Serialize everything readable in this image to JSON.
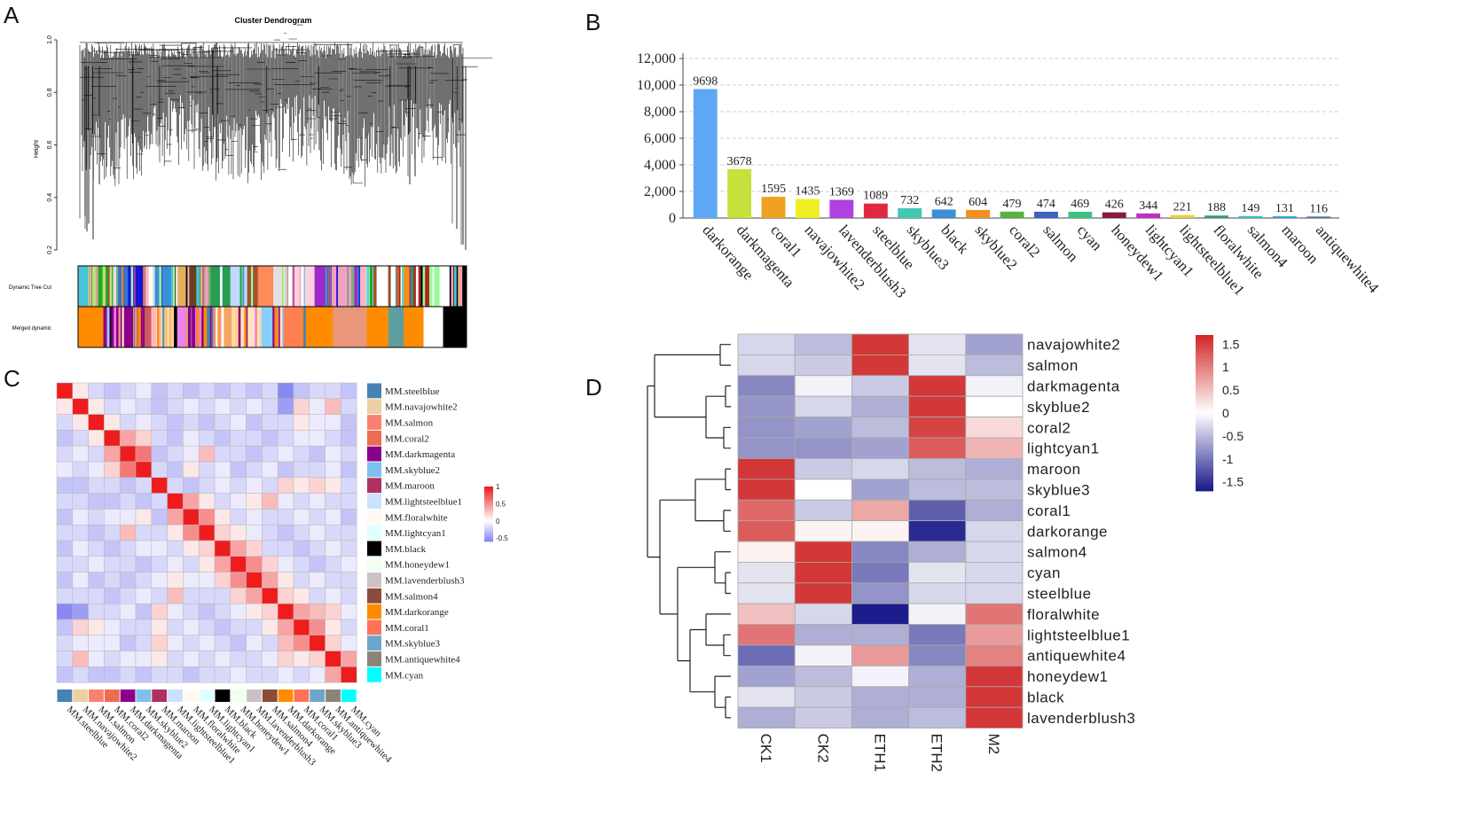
{
  "panels": {
    "a": {
      "letter": "A",
      "title": "Cluster Dendrogram",
      "ylabel": "Height",
      "yticks": [
        "0.2",
        "0.4",
        "0.6",
        "0.8",
        "1.0"
      ],
      "row_labels": [
        "Dynamic Tree Cut",
        "Merged dynamic"
      ]
    },
    "b": {
      "letter": "B"
    },
    "c": {
      "letter": "C"
    },
    "d": {
      "letter": "D"
    }
  },
  "chart_data": [
    {
      "id": "dendrogram",
      "type": "dendrogram",
      "title": "Cluster Dendrogram",
      "ylabel": "Height",
      "ylim": [
        0.2,
        1.0
      ],
      "dynamic_tree_cut_colors": [
        "#49c3d8",
        "#b6e37a",
        "#22aa22",
        "#3b6fd1",
        "#1515d6",
        "#ffffff",
        "#3a8fd8",
        "#e0b060",
        "#6b3f1f",
        "#d09a6b",
        "#2a9d50",
        "#c0d8ff",
        "#a0522d",
        "#ff8a5c",
        "#e0e0e0",
        "#c94fa0",
        "#ffd0e0",
        "#9e2ac9",
        "#f2a0c0",
        "#7fb07f",
        "#ffb6c1",
        "#40e0d0",
        "#ffffff",
        "#ff8c00",
        "#b22222",
        "#98fb98",
        "#ffffff",
        "#000000"
      ],
      "merged_dynamic_colors": [
        "#ff8c00",
        "#8b008b",
        "#cd5c5c",
        "#ffb6c1",
        "#fdd8a0",
        "#ee82ee",
        "#4682b4",
        "#f4a460",
        "#ffe4c4",
        "#87cefa",
        "#ff7f50",
        "#ff8c00",
        "#e9967a",
        "#ff8c00",
        "#5f9ea0",
        "#ff8c00",
        "#ffffff",
        "#000000"
      ]
    },
    {
      "id": "module-sizes",
      "type": "bar",
      "categories": [
        "darkorange",
        "darkmagenta",
        "coral1",
        "navajowhite2",
        "lavenderblush3",
        "steelblue",
        "skyblue3",
        "black",
        "skyblue2",
        "coral2",
        "salmon",
        "cyan",
        "honeydew1",
        "lightcyan1",
        "lightsteelblue1",
        "floralwhite",
        "salmon4",
        "maroon",
        "antiquewhite4"
      ],
      "values": [
        9698,
        3678,
        1595,
        1435,
        1369,
        1089,
        732,
        642,
        604,
        479,
        474,
        469,
        426,
        344,
        221,
        188,
        149,
        131,
        116
      ],
      "value_labels": [
        "9698",
        "3678",
        "1595",
        "1435",
        "1369",
        "1089",
        "732",
        "642",
        "604",
        "479",
        "474",
        "469",
        "426",
        "344",
        "221",
        "188",
        "149",
        "131",
        "116"
      ],
      "colors": [
        "#5ca8f4",
        "#c6e03c",
        "#f0a020",
        "#eeee22",
        "#b040e0",
        "#e02840",
        "#40c8b0",
        "#3d8ed8",
        "#f09020",
        "#58b040",
        "#4060c0",
        "#40c080",
        "#8a1a3a",
        "#c030c0",
        "#e8d040",
        "#30a070",
        "#40c0c0",
        "#30a8d0",
        "#4878b0"
      ],
      "yticks": [
        "0",
        "2,000",
        "4,000",
        "6,000",
        "8,000",
        "10,000",
        "12,000"
      ],
      "ylim": [
        0,
        12000
      ],
      "grid": true
    },
    {
      "id": "mm-correlation",
      "type": "heatmap",
      "rows": [
        "MM.steelblue",
        "MM.navajowhite2",
        "MM.salmon",
        "MM.coral2",
        "MM.darkmagenta",
        "MM.skyblue2",
        "MM.maroon",
        "MM.lightsteelblue1",
        "MM.floralwhite",
        "MM.lightcyan1",
        "MM.black",
        "MM.honeydew1",
        "MM.lavenderblush3",
        "MM.salmon4",
        "MM.darkorange",
        "MM.coral1",
        "MM.skyblue3",
        "MM.antiquewhite4",
        "MM.cyan"
      ],
      "module_colors": [
        "#4682b4",
        "#eecfa1",
        "#fa8072",
        "#ee6a50",
        "#8b008b",
        "#7ec0ee",
        "#b03060",
        "#cae1ff",
        "#fffaf0",
        "#e0ffff",
        "#000000",
        "#f0fff0",
        "#cdc1c5",
        "#8b4c39",
        "#ff8c00",
        "#ff7256",
        "#6ca6cd",
        "#8b8378",
        "#00ffff"
      ],
      "legend_ticks": [
        "1",
        "0.5",
        "0",
        "-0.5"
      ],
      "values": [
        [
          1.0,
          0.1,
          -0.2,
          -0.3,
          -0.2,
          -0.1,
          -0.3,
          -0.2,
          -0.3,
          -0.2,
          -0.3,
          -0.2,
          -0.3,
          -0.2,
          -0.6,
          -0.3,
          -0.2,
          -0.2,
          -0.3
        ],
        [
          0.1,
          1.0,
          0.1,
          -0.2,
          -0.1,
          -0.2,
          -0.3,
          -0.2,
          -0.1,
          -0.2,
          -0.1,
          -0.2,
          -0.1,
          -0.2,
          -0.5,
          0.2,
          -0.1,
          0.3,
          -0.2
        ],
        [
          -0.2,
          0.1,
          1.0,
          0.1,
          -0.2,
          -0.1,
          -0.2,
          -0.3,
          -0.2,
          -0.3,
          -0.2,
          -0.1,
          -0.3,
          -0.2,
          -0.2,
          0.1,
          -0.1,
          -0.1,
          -0.3
        ],
        [
          -0.3,
          -0.2,
          0.1,
          1.0,
          0.4,
          0.2,
          -0.2,
          -0.3,
          -0.1,
          -0.2,
          -0.3,
          -0.2,
          -0.2,
          -0.3,
          -0.2,
          -0.1,
          -0.1,
          -0.2,
          -0.3
        ],
        [
          -0.2,
          -0.1,
          -0.2,
          0.4,
          1.0,
          0.6,
          -0.3,
          -0.2,
          -0.1,
          0.3,
          -0.2,
          -0.2,
          -0.3,
          -0.2,
          -0.1,
          -0.2,
          -0.3,
          -0.1,
          -0.2
        ],
        [
          -0.1,
          -0.2,
          -0.1,
          0.2,
          0.6,
          1.0,
          -0.2,
          -0.3,
          0.1,
          -0.2,
          -0.1,
          -0.3,
          -0.2,
          -0.1,
          -0.3,
          -0.2,
          -0.2,
          -0.1,
          -0.3
        ],
        [
          -0.3,
          -0.3,
          -0.2,
          -0.2,
          -0.3,
          -0.2,
          1.0,
          -0.2,
          -0.3,
          -0.2,
          -0.1,
          -0.2,
          -0.1,
          -0.2,
          0.2,
          0.1,
          0.2,
          0.1,
          -0.2
        ],
        [
          -0.2,
          -0.2,
          -0.3,
          -0.3,
          -0.2,
          -0.3,
          -0.2,
          1.0,
          0.4,
          0.1,
          -0.2,
          -0.1,
          0.1,
          0.3,
          -0.1,
          -0.2,
          -0.1,
          -0.2,
          -0.2
        ],
        [
          -0.3,
          -0.1,
          -0.2,
          -0.1,
          -0.1,
          0.1,
          -0.3,
          0.4,
          1.0,
          0.5,
          0.1,
          -0.2,
          -0.1,
          -0.2,
          -0.2,
          -0.1,
          -0.2,
          -0.1,
          -0.3
        ],
        [
          -0.2,
          -0.2,
          -0.3,
          -0.2,
          0.3,
          -0.2,
          -0.2,
          0.1,
          0.5,
          1.0,
          0.2,
          0.1,
          -0.1,
          -0.2,
          -0.3,
          -0.2,
          -0.1,
          -0.2,
          -0.2
        ],
        [
          -0.3,
          -0.1,
          -0.2,
          -0.3,
          -0.2,
          -0.1,
          -0.1,
          -0.2,
          0.1,
          0.2,
          1.0,
          0.4,
          0.2,
          -0.2,
          -0.2,
          -0.3,
          -0.2,
          -0.1,
          -0.2
        ],
        [
          -0.2,
          -0.2,
          -0.1,
          -0.2,
          -0.2,
          -0.3,
          -0.2,
          -0.1,
          -0.2,
          0.1,
          0.4,
          1.0,
          0.5,
          0.2,
          -0.1,
          -0.2,
          -0.3,
          -0.2,
          -0.1
        ],
        [
          -0.3,
          -0.1,
          -0.3,
          -0.2,
          -0.3,
          -0.2,
          -0.1,
          0.1,
          -0.1,
          -0.1,
          0.2,
          0.5,
          1.0,
          0.4,
          0.1,
          -0.2,
          -0.1,
          -0.2,
          -0.2
        ],
        [
          -0.2,
          -0.2,
          -0.2,
          -0.3,
          -0.2,
          -0.1,
          -0.2,
          0.3,
          -0.2,
          -0.2,
          -0.2,
          0.2,
          0.4,
          1.0,
          0.2,
          0.1,
          -0.2,
          -0.1,
          -0.2
        ],
        [
          -0.6,
          -0.5,
          -0.2,
          -0.2,
          -0.1,
          -0.3,
          0.2,
          -0.1,
          -0.2,
          -0.3,
          -0.2,
          -0.1,
          0.1,
          0.2,
          1.0,
          0.4,
          0.3,
          0.2,
          -0.1
        ],
        [
          -0.3,
          0.2,
          0.1,
          -0.1,
          -0.2,
          -0.2,
          0.1,
          -0.2,
          -0.1,
          -0.2,
          -0.3,
          -0.2,
          -0.2,
          0.1,
          0.4,
          1.0,
          0.5,
          0.1,
          -0.2
        ],
        [
          -0.2,
          -0.1,
          -0.1,
          -0.1,
          -0.3,
          -0.2,
          0.2,
          -0.1,
          -0.2,
          -0.1,
          -0.2,
          -0.3,
          -0.1,
          -0.2,
          0.3,
          0.5,
          1.0,
          0.2,
          -0.1
        ],
        [
          -0.2,
          0.3,
          -0.1,
          -0.2,
          -0.1,
          -0.1,
          0.1,
          -0.2,
          -0.1,
          -0.2,
          -0.1,
          -0.2,
          -0.2,
          -0.1,
          0.2,
          0.1,
          0.2,
          1.0,
          0.4
        ],
        [
          -0.3,
          -0.2,
          -0.3,
          -0.3,
          -0.2,
          -0.3,
          -0.2,
          -0.2,
          -0.3,
          -0.2,
          -0.2,
          -0.1,
          -0.2,
          -0.2,
          -0.1,
          -0.2,
          -0.1,
          0.4,
          1.0
        ]
      ]
    },
    {
      "id": "module-trait-heatmap",
      "type": "heatmap",
      "rows": [
        "navajowhite2",
        "salmon",
        "darkmagenta",
        "skyblue2",
        "coral2",
        "lightcyan1",
        "maroon",
        "skyblue3",
        "coral1",
        "darkorange",
        "salmon4",
        "cyan",
        "steelblue",
        "floralwhite",
        "lightsteelblue1",
        "antiquewhite4",
        "honeydew1",
        "black",
        "lavenderblush3"
      ],
      "columns": [
        "CK1",
        "CK2",
        "ETH1",
        "ETH2",
        "M2"
      ],
      "legend_ticks": [
        "1.5",
        "1",
        "0.5",
        "0",
        "-0.5",
        "-1",
        "-1.5"
      ],
      "values": [
        [
          -0.3,
          -0.5,
          1.6,
          -0.2,
          -0.7
        ],
        [
          -0.3,
          -0.4,
          1.6,
          -0.2,
          -0.5
        ],
        [
          -0.9,
          -0.1,
          -0.4,
          1.6,
          -0.1
        ],
        [
          -0.8,
          -0.3,
          -0.6,
          1.6,
          0.0
        ],
        [
          -0.8,
          -0.7,
          -0.5,
          1.5,
          0.3
        ],
        [
          -0.8,
          -0.8,
          -0.7,
          1.3,
          0.6
        ],
        [
          1.6,
          -0.4,
          -0.3,
          -0.5,
          -0.6
        ],
        [
          1.6,
          0.0,
          -0.7,
          -0.5,
          -0.5
        ],
        [
          1.2,
          -0.4,
          0.7,
          -1.2,
          -0.6
        ],
        [
          1.3,
          0.1,
          0.1,
          -1.6,
          -0.3
        ],
        [
          0.1,
          1.6,
          -0.9,
          -0.6,
          -0.3
        ],
        [
          -0.2,
          1.6,
          -1.0,
          -0.2,
          -0.3
        ],
        [
          -0.2,
          1.6,
          -0.8,
          -0.3,
          -0.3
        ],
        [
          0.5,
          -0.3,
          -1.7,
          -0.1,
          1.1
        ],
        [
          1.1,
          -0.6,
          -0.6,
          -1.0,
          0.8
        ],
        [
          -1.1,
          -0.1,
          0.8,
          -0.9,
          1.0
        ],
        [
          -0.7,
          -0.5,
          -0.1,
          -0.6,
          1.6
        ],
        [
          -0.2,
          -0.4,
          -0.6,
          -0.6,
          1.6
        ],
        [
          -0.6,
          -0.4,
          -0.6,
          -0.5,
          1.6
        ]
      ]
    }
  ]
}
